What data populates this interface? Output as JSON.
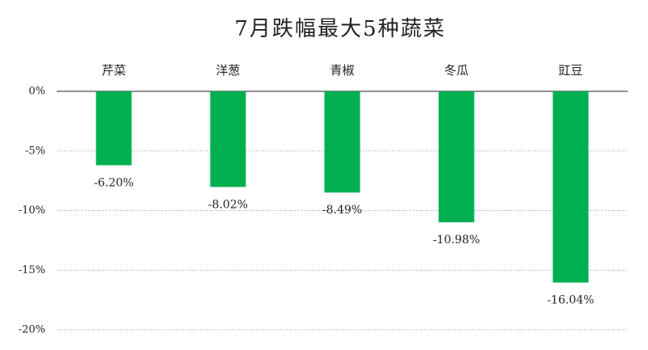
{
  "chart_data": {
    "type": "bar",
    "title": "7月跌幅最大5种蔬菜",
    "categories": [
      "芹菜",
      "洋葱",
      "青椒",
      "冬瓜",
      "豇豆"
    ],
    "values": [
      -6.2,
      -8.02,
      -8.49,
      -10.98,
      -16.04
    ],
    "value_labels": [
      "-6.20%",
      "-8.02%",
      "-8.49%",
      "-10.98%",
      "-16.04%"
    ],
    "color": "#00b050",
    "ylim": [
      -20,
      0
    ],
    "yticks": [
      {
        "value": 0,
        "label": "0%"
      },
      {
        "value": -5,
        "label": "-5%"
      },
      {
        "value": -10,
        "label": "-10%"
      },
      {
        "value": -15,
        "label": "-15%"
      },
      {
        "value": -20,
        "label": "-20%"
      }
    ],
    "grid": true
  }
}
